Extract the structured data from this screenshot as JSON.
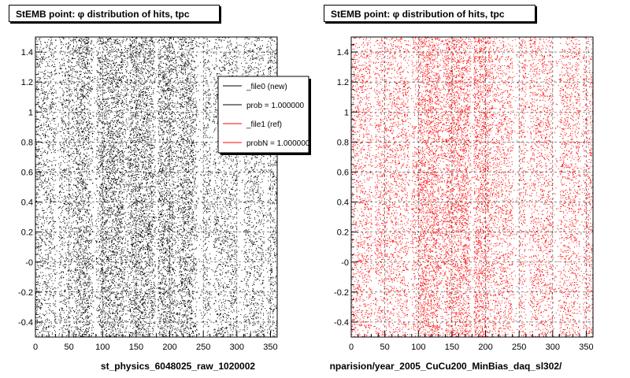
{
  "chart_data": [
    {
      "type": "scatter",
      "title": "StEMB point:  φ distribution of hits, tpc",
      "xlabel": "st_physics_6048025_raw_1020002",
      "xlim": [
        0,
        360
      ],
      "ylim": [
        -0.5,
        1.5
      ],
      "xticks": [
        "0",
        "50",
        "100",
        "150",
        "200",
        "250",
        "300",
        "350"
      ],
      "yticks": [
        "-0.4",
        "-0.2",
        "-0",
        "0.2",
        "0.4",
        "0.6",
        "0.8",
        "1",
        "1.2",
        "1.4"
      ],
      "dense_bands_x": [
        [
          60,
          80
        ],
        [
          95,
          130
        ],
        [
          140,
          175
        ],
        [
          180,
          205
        ],
        [
          215,
          235
        ]
      ],
      "sparse_gaps_x": [
        [
          30,
          35
        ],
        [
          85,
          90
        ],
        [
          178,
          182
        ],
        [
          240,
          250
        ],
        [
          260,
          265
        ],
        [
          300,
          310
        ],
        [
          340,
          345
        ]
      ],
      "series": [
        {
          "name": "_file0 (new)",
          "color": "#000000"
        },
        {
          "name": "_file1 (ref)",
          "color": "#ff0000"
        }
      ],
      "legend": {
        "placement": "top-right",
        "entries": [
          {
            "label": "_file0 (new)",
            "color": "#000000"
          },
          {
            "label": "prob = 1.000000",
            "color": "#000000"
          },
          {
            "label": "_file1 (ref)",
            "color": "#ff0000"
          },
          {
            "label": "probN = 1.000000",
            "color": "#ff0000"
          }
        ]
      }
    },
    {
      "type": "scatter",
      "title": "StEMB point:  φ distribution of hits, tpc",
      "xlabel": "nparision/year_2005_CuCu200_MinBias_daq_sl302/",
      "xlim": [
        0,
        360
      ],
      "ylim": [
        -0.5,
        1.5
      ],
      "xticks": [
        "0",
        "50",
        "100",
        "150",
        "200",
        "250",
        "300",
        "350"
      ],
      "yticks": [
        "-0.4",
        "-0.2",
        "-0",
        "0.2",
        "0.4",
        "0.6",
        "0.8",
        "1",
        "1.2",
        "1.4"
      ],
      "dense_bands_x": [
        [
          100,
          130
        ],
        [
          140,
          175
        ],
        [
          180,
          205
        ]
      ],
      "sparse_gaps_x": [
        [
          30,
          35
        ],
        [
          85,
          90
        ],
        [
          178,
          182
        ],
        [
          240,
          250
        ],
        [
          260,
          265
        ],
        [
          300,
          310
        ],
        [
          340,
          345
        ]
      ],
      "series": [
        {
          "name": "_file1 (ref)",
          "color": "#ff0000"
        }
      ]
    }
  ]
}
